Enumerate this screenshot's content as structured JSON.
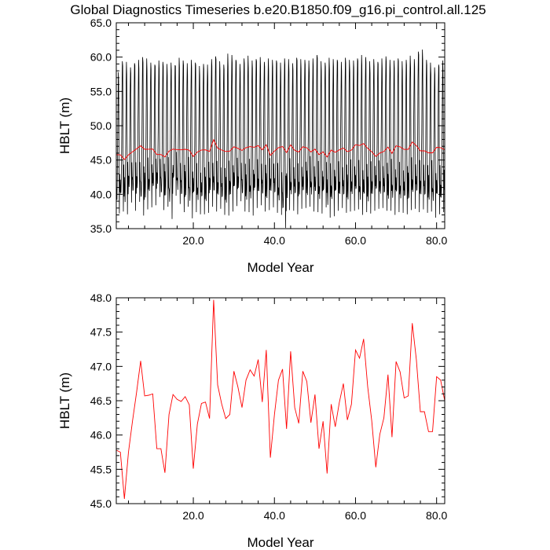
{
  "title": "Global Diagnostics Timeseries b.e20.B1850.f09_g16.pi_control.all.125",
  "colors": {
    "monthly": "#000000",
    "annual": "#ff0000",
    "axes": "#000000"
  },
  "chart_data": [
    {
      "type": "line",
      "xlabel": "Model Year",
      "ylabel": "HBLT (m)",
      "xlim": [
        1,
        82
      ],
      "ylim": [
        35.0,
        65.0
      ],
      "xticks": [
        20,
        40,
        60,
        80
      ],
      "xtick_labels": [
        "20.0",
        "40.0",
        "60.0",
        "80.0"
      ],
      "yticks": [
        35,
        40,
        45,
        50,
        55,
        60,
        65
      ],
      "ytick_labels": [
        "35.0",
        "40.0",
        "45.0",
        "50.0",
        "55.0",
        "60.0",
        "65.0"
      ],
      "grid": false,
      "legend": "none",
      "series": [
        {
          "color": "#000000",
          "description_of_pattern": "monthly values, seasonal cycle with one maximum (~58-61 m) and one minimum (~36-41 m) each model year, plus secondary oscillations around 40-46 m",
          "annual_max": [
            57.8,
            59.4,
            59.3,
            58.5,
            59.1,
            59.6,
            60.0,
            59.8,
            59.2,
            58.9,
            59.5,
            59.3,
            59.0,
            59.2,
            58.8,
            59.9,
            59.5,
            59.1,
            59.6,
            59.2,
            58.7,
            59.0,
            58.9,
            59.7,
            60.1,
            59.4,
            58.9,
            60.5,
            60.3,
            59.6,
            59.0,
            59.8,
            60.2,
            59.5,
            59.7,
            60.0,
            59.3,
            59.8,
            59.6,
            59.5,
            59.2,
            59.8,
            59.7,
            59.1,
            59.9,
            59.7,
            59.6,
            59.5,
            59.8,
            60.3,
            59.4,
            59.2,
            59.9,
            59.7,
            59.6,
            59.3,
            59.9,
            59.6,
            59.5,
            59.8,
            60.3,
            60.0,
            59.4,
            59.7,
            59.3,
            59.8,
            60.1,
            59.6,
            59.5,
            59.8,
            59.4,
            59.6,
            60.2,
            59.7,
            60.8,
            61.1,
            59.6,
            59.2,
            58.5,
            58.9,
            59.5
          ],
          "annual_min": [
            37.2,
            37.5,
            37.1,
            38.8,
            37.6,
            38.9,
            36.9,
            37.8,
            38.1,
            38.4,
            39.6,
            37.7,
            38.2,
            36.4,
            39.8,
            38.6,
            37.4,
            38.2,
            36.5,
            37.4,
            37.1,
            37.1,
            37.3,
            38.2,
            37.5,
            37.9,
            37.0,
            36.9,
            37.5,
            38.3,
            39.0,
            37.5,
            37.4,
            36.9,
            38.0,
            38.4,
            37.5,
            37.7,
            38.1,
            37.3,
            37.0,
            35.1,
            37.7,
            37.6,
            37.1,
            37.9,
            38.0,
            38.2,
            37.5,
            37.4,
            37.2,
            38.1,
            36.6,
            36.8,
            37.6,
            38.0,
            37.3,
            37.5,
            37.6,
            37.8,
            37.0,
            37.4,
            37.2,
            37.6,
            37.9,
            38.0,
            37.6,
            37.6,
            37.0,
            37.4,
            37.3,
            37.1,
            37.7,
            37.9,
            37.4,
            37.8,
            37.3,
            37.5,
            36.6,
            37.1,
            37.4
          ]
        },
        {
          "color": "#ff0000",
          "description_of_pattern": "annual mean, same values as the lower panel",
          "x": [
            1,
            2,
            3,
            4,
            5,
            6,
            7,
            8,
            9,
            10,
            11,
            12,
            13,
            14,
            15,
            16,
            17,
            18,
            19,
            20,
            21,
            22,
            23,
            24,
            25,
            26,
            27,
            28,
            29,
            30,
            31,
            32,
            33,
            34,
            35,
            36,
            37,
            38,
            39,
            40,
            41,
            42,
            43,
            44,
            45,
            46,
            47,
            48,
            49,
            50,
            51,
            52,
            53,
            54,
            55,
            56,
            57,
            58,
            59,
            60,
            61,
            62,
            63,
            64,
            65,
            66,
            67,
            68,
            69,
            70,
            71,
            72,
            73,
            74,
            75,
            76,
            77,
            78,
            79,
            80,
            81,
            82
          ],
          "y": [
            45.78,
            45.75,
            45.07,
            45.75,
            46.2,
            46.62,
            47.08,
            46.57,
            46.58,
            46.6,
            45.8,
            45.8,
            45.45,
            46.3,
            46.59,
            46.52,
            46.49,
            46.56,
            46.44,
            45.51,
            46.16,
            46.46,
            46.48,
            46.24,
            47.97,
            46.73,
            46.45,
            46.24,
            46.3,
            46.93,
            46.7,
            46.4,
            46.8,
            46.95,
            46.86,
            47.1,
            46.48,
            47.24,
            45.67,
            46.3,
            46.8,
            46.96,
            46.09,
            47.22,
            46.4,
            46.17,
            46.93,
            46.78,
            46.18,
            46.59,
            45.8,
            46.2,
            45.44,
            46.45,
            46.12,
            46.47,
            46.75,
            46.22,
            46.45,
            47.24,
            47.12,
            47.4,
            46.7,
            46.21,
            45.53,
            46.01,
            46.25,
            46.88,
            45.97,
            47.07,
            46.92,
            46.54,
            46.57,
            47.63,
            47.1,
            46.34,
            46.34,
            46.05,
            46.05,
            46.85,
            46.8,
            46.5
          ]
        }
      ]
    },
    {
      "type": "line",
      "xlabel": "Model Year",
      "ylabel": "HBLT (m)",
      "xlim": [
        1,
        82
      ],
      "ylim": [
        45.0,
        48.0
      ],
      "xticks": [
        20,
        40,
        60,
        80
      ],
      "xtick_labels": [
        "20.0",
        "40.0",
        "60.0",
        "80.0"
      ],
      "yticks": [
        45.0,
        45.5,
        46.0,
        46.5,
        47.0,
        47.5,
        48.0
      ],
      "ytick_labels": [
        "45.0",
        "45.5",
        "46.0",
        "46.5",
        "47.0",
        "47.5",
        "48.0"
      ],
      "grid": false,
      "legend": "none",
      "series": [
        {
          "color": "#ff0000",
          "x": [
            1,
            2,
            3,
            4,
            5,
            6,
            7,
            8,
            9,
            10,
            11,
            12,
            13,
            14,
            15,
            16,
            17,
            18,
            19,
            20,
            21,
            22,
            23,
            24,
            25,
            26,
            27,
            28,
            29,
            30,
            31,
            32,
            33,
            34,
            35,
            36,
            37,
            38,
            39,
            40,
            41,
            42,
            43,
            44,
            45,
            46,
            47,
            48,
            49,
            50,
            51,
            52,
            53,
            54,
            55,
            56,
            57,
            58,
            59,
            60,
            61,
            62,
            63,
            64,
            65,
            66,
            67,
            68,
            69,
            70,
            71,
            72,
            73,
            74,
            75,
            76,
            77,
            78,
            79,
            80,
            81,
            82
          ],
          "y": [
            45.78,
            45.75,
            45.07,
            45.75,
            46.2,
            46.62,
            47.08,
            46.57,
            46.58,
            46.6,
            45.8,
            45.8,
            45.45,
            46.3,
            46.59,
            46.52,
            46.49,
            46.56,
            46.44,
            45.51,
            46.16,
            46.46,
            46.48,
            46.24,
            47.97,
            46.73,
            46.45,
            46.24,
            46.3,
            46.93,
            46.7,
            46.4,
            46.8,
            46.95,
            46.86,
            47.1,
            46.48,
            47.24,
            45.67,
            46.3,
            46.8,
            46.96,
            46.09,
            47.22,
            46.4,
            46.17,
            46.93,
            46.78,
            46.18,
            46.59,
            45.8,
            46.2,
            45.44,
            46.45,
            46.12,
            46.47,
            46.75,
            46.22,
            46.45,
            47.24,
            47.12,
            47.4,
            46.7,
            46.21,
            45.53,
            46.01,
            46.25,
            46.88,
            45.97,
            47.07,
            46.92,
            46.54,
            46.57,
            47.63,
            47.1,
            46.34,
            46.34,
            46.05,
            46.05,
            46.85,
            46.8,
            46.5
          ]
        }
      ]
    }
  ]
}
